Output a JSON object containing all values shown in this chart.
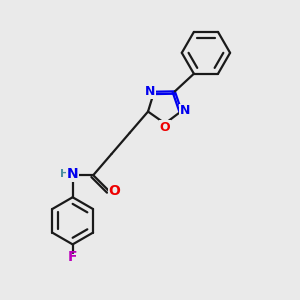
{
  "background_color": "#eaeaea",
  "bond_color": "#1a1a1a",
  "atom_colors": {
    "N": "#0000ee",
    "O": "#ee0000",
    "F": "#bb00bb",
    "H": "#4a8fa0",
    "C": "#1a1a1a"
  },
  "figsize": [
    3.0,
    3.0
  ],
  "dpi": 100,
  "lw": 1.6,
  "fs": 9
}
